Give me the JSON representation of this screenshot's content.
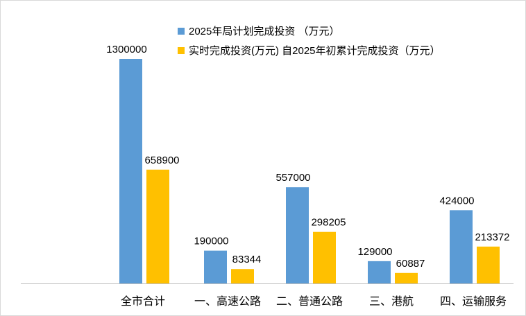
{
  "chart_data": {
    "type": "bar",
    "title": "",
    "xlabel": "",
    "ylabel": "",
    "ylim": [
      0,
      1400000
    ],
    "grid": false,
    "legend_position": "top-right",
    "categories": [
      "全市合计",
      "一、高速公路",
      "二、普通公路",
      "三、港航",
      "四、运输服务"
    ],
    "series": [
      {
        "name": "2025年局计划完成投资 （万元）",
        "color": "#5b9bd5",
        "values": [
          1300000,
          190000,
          557000,
          129000,
          424000
        ]
      },
      {
        "name": "实时完成投资(万元) 自2025年初累计完成投资（万元）",
        "color": "#ffc000",
        "values": [
          658900,
          83344,
          298205,
          60887,
          213372
        ]
      }
    ]
  }
}
